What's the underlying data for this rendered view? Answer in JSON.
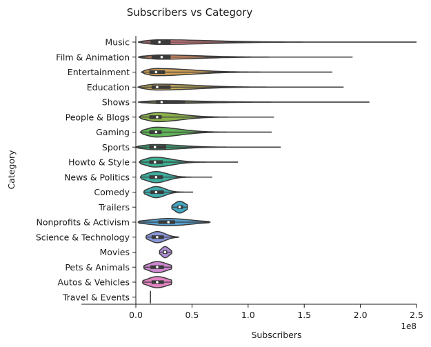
{
  "chart_data": {
    "type": "violin",
    "title": "Subscribers vs Category",
    "xlabel": "Subscribers",
    "ylabel": "Category",
    "x_offset_label": "1e8",
    "xlim": [
      0,
      2.5
    ],
    "x_ticks": [
      0.0,
      0.5,
      1.0,
      1.5,
      2.0,
      2.5
    ],
    "x_tick_labels": [
      "0.0",
      "0.5",
      "1.0",
      "1.5",
      "2.0",
      "2.5"
    ],
    "grid": false,
    "orientation": "horizontal",
    "categories": [
      {
        "name": "Music",
        "color": "#ee8a8f",
        "min": 0.02,
        "q1": 0.13,
        "median": 0.21,
        "q3": 0.31,
        "max": 2.5,
        "width": 0.35
      },
      {
        "name": "Film & Animation",
        "color": "#e99a6e",
        "min": 0.02,
        "q1": 0.14,
        "median": 0.23,
        "q3": 0.31,
        "max": 1.93,
        "width": 0.32
      },
      {
        "name": "Entertainment",
        "color": "#d2a158",
        "min": 0.05,
        "q1": 0.12,
        "median": 0.18,
        "q3": 0.26,
        "max": 1.75,
        "width": 0.55
      },
      {
        "name": "Education",
        "color": "#c0a85a",
        "min": 0.02,
        "q1": 0.14,
        "median": 0.19,
        "q3": 0.31,
        "max": 1.85,
        "width": 0.45
      },
      {
        "name": "Shows",
        "color": "#9fab58",
        "min": 0.02,
        "q1": 0.18,
        "median": 0.23,
        "q3": 0.44,
        "max": 2.08,
        "width": 0.22
      },
      {
        "name": "People & Blogs",
        "color": "#8ab04c",
        "min": 0.03,
        "q1": 0.12,
        "median": 0.19,
        "q3": 0.23,
        "max": 1.23,
        "width": 0.7
      },
      {
        "name": "Gaming",
        "color": "#61b357",
        "min": 0.04,
        "q1": 0.12,
        "median": 0.18,
        "q3": 0.23,
        "max": 1.21,
        "width": 0.75
      },
      {
        "name": "Sports",
        "color": "#3fb07a",
        "min": 0.0,
        "q1": 0.12,
        "median": 0.17,
        "q3": 0.27,
        "max": 1.29,
        "width": 0.4
      },
      {
        "name": "Howto & Style",
        "color": "#3daf91",
        "min": 0.03,
        "q1": 0.12,
        "median": 0.17,
        "q3": 0.24,
        "max": 0.91,
        "width": 0.75
      },
      {
        "name": "News & Politics",
        "color": "#3eae9f",
        "min": 0.04,
        "q1": 0.12,
        "median": 0.18,
        "q3": 0.24,
        "max": 0.68,
        "width": 0.85
      },
      {
        "name": "Comedy",
        "color": "#3fadae",
        "min": 0.07,
        "q1": 0.13,
        "median": 0.18,
        "q3": 0.25,
        "max": 0.51,
        "width": 0.85
      },
      {
        "name": "Trailers",
        "color": "#42a5c0",
        "min": 0.32,
        "q1": 0.37,
        "median": 0.39,
        "q3": 0.42,
        "max": 0.46,
        "width": 0.9
      },
      {
        "name": "Nonprofits & Activism",
        "color": "#55a0d0",
        "min": 0.02,
        "q1": 0.2,
        "median": 0.29,
        "q3": 0.35,
        "max": 0.66,
        "width": 0.55
      },
      {
        "name": "Science & Technology",
        "color": "#8a97d9",
        "min": 0.09,
        "q1": 0.14,
        "median": 0.19,
        "q3": 0.25,
        "max": 0.38,
        "width": 0.85
      },
      {
        "name": "Movies",
        "color": "#b08ed6",
        "min": 0.21,
        "q1": 0.24,
        "median": 0.26,
        "q3": 0.28,
        "max": 0.32,
        "width": 0.85
      },
      {
        "name": "Pets & Animals",
        "color": "#cc87cf",
        "min": 0.07,
        "q1": 0.13,
        "median": 0.19,
        "q3": 0.25,
        "max": 0.32,
        "width": 0.85
      },
      {
        "name": "Autos & Vehicles",
        "color": "#e183c2",
        "min": 0.06,
        "q1": 0.14,
        "median": 0.19,
        "q3": 0.25,
        "max": 0.32,
        "width": 0.85
      },
      {
        "name": "Travel & Events",
        "color": "#ee86ac",
        "min": 0.13,
        "q1": 0.13,
        "median": 0.13,
        "q3": 0.13,
        "max": 0.13,
        "width": 0.0
      }
    ]
  }
}
